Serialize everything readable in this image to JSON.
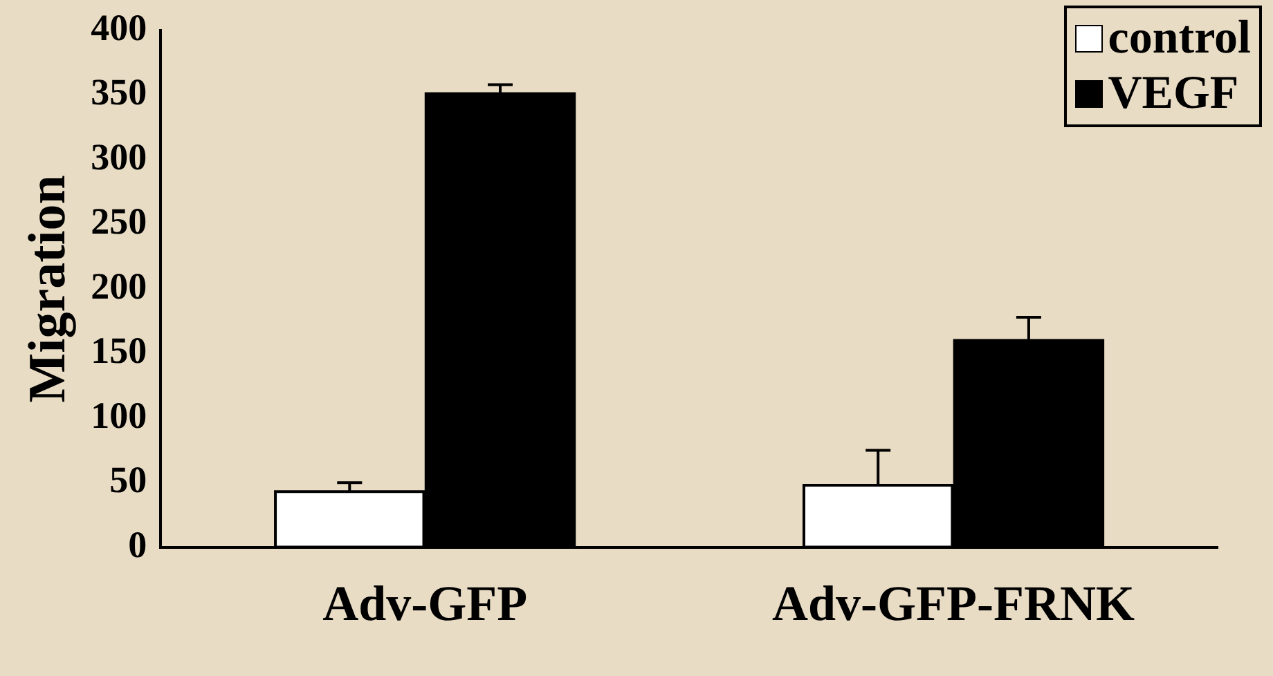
{
  "chart_data": {
    "type": "bar",
    "ylabel": "Migration",
    "categories": [
      "Adv-GFP",
      "Adv-GFP-FRNK"
    ],
    "series": [
      {
        "name": "control",
        "color": "#ffffff",
        "values": [
          43,
          48
        ],
        "errors": [
          [
            43,
            50
          ],
          [
            48,
            75
          ]
        ]
      },
      {
        "name": "VEGF",
        "color": "#000000",
        "values": [
          351,
          160
        ],
        "errors": [
          [
            351,
            358
          ],
          [
            160,
            178
          ]
        ]
      }
    ],
    "ylim": [
      0,
      400
    ],
    "yticks": [
      0,
      50,
      100,
      150,
      200,
      250,
      300,
      350,
      400
    ],
    "grid": false,
    "legend": "top right"
  }
}
